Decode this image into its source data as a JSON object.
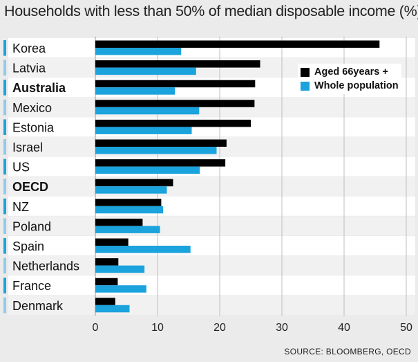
{
  "title": "Households with less than 50% of median disposable income (%)",
  "source": "SOURCE: BLOOMBERG, OECD",
  "colors": {
    "aged": "#000000",
    "whole": "#1aa3dc",
    "marker": "#1aa3dc",
    "marker_light": "#8fcbe9"
  },
  "chart_data": {
    "type": "bar",
    "orientation": "horizontal",
    "categories": [
      "Korea",
      "Latvia",
      "Australia",
      "Mexico",
      "Estonia",
      "Israel",
      "US",
      "OECD",
      "NZ",
      "Poland",
      "Spain",
      "Netherlands",
      "France",
      "Denmark"
    ],
    "bold_categories": [
      "Australia",
      "OECD"
    ],
    "series": [
      {
        "name": "Aged 66years +",
        "color": "#000000",
        "values": [
          45.7,
          26.5,
          25.7,
          25.6,
          25.0,
          21.1,
          20.9,
          12.5,
          10.6,
          7.6,
          5.3,
          3.7,
          3.6,
          3.2
        ]
      },
      {
        "name": "Whole population",
        "color": "#1aa3dc",
        "values": [
          13.8,
          16.2,
          12.8,
          16.7,
          15.5,
          19.5,
          16.8,
          11.5,
          10.9,
          10.4,
          15.3,
          7.9,
          8.2,
          5.5
        ]
      }
    ],
    "xlim": [
      0,
      50
    ],
    "xticks": [
      "0",
      "10",
      "20",
      "30",
      "40",
      "50"
    ],
    "grid": true,
    "legend": "top-right"
  }
}
